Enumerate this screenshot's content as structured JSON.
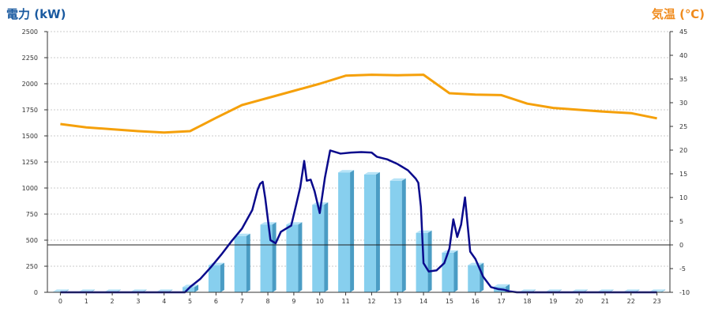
{
  "chart_data": {
    "type": "bar+line",
    "left_axis": {
      "label": "電力 (kW)",
      "color": "#1a5aa0",
      "ylim": [
        0,
        2500
      ],
      "ticks": [
        0,
        250,
        500,
        750,
        1000,
        1250,
        1500,
        1750,
        2000,
        2250,
        2500
      ]
    },
    "right_axis": {
      "label": "気温 (℃)",
      "color": "#f08c1e",
      "ylim": [
        -10,
        45
      ],
      "ticks": [
        -10,
        -5,
        0,
        5,
        10,
        15,
        20,
        25,
        30,
        35,
        40,
        45
      ]
    },
    "x_ticks": [
      "0",
      "1",
      "2",
      "3",
      "4",
      "5",
      "6",
      "7",
      "8",
      "9",
      "10",
      "11",
      "12",
      "13",
      "14",
      "15",
      "16",
      "17",
      "18",
      "19",
      "20",
      "21",
      "22",
      "23"
    ],
    "grid": true,
    "bars": {
      "axis": "left",
      "color": "#87cfee",
      "side_color": "#4a9cc4",
      "top_color": "#b6e3f7",
      "values": [
        5,
        5,
        5,
        5,
        5,
        50,
        260,
        540,
        650,
        650,
        840,
        1150,
        1130,
        1070,
        570,
        380,
        260,
        55,
        5,
        5,
        5,
        5,
        5,
        5
      ]
    },
    "temperature": {
      "axis": "right",
      "color": "#f5a00a",
      "x": [
        0,
        1,
        2,
        3,
        4,
        5,
        6,
        7,
        8,
        9,
        10,
        11,
        12,
        13,
        14,
        15,
        16,
        17,
        18,
        19,
        20,
        21,
        22,
        23
      ],
      "values": [
        25.5,
        24.8,
        24.4,
        24.0,
        23.7,
        24.0,
        26.8,
        29.5,
        31.0,
        32.5,
        34.0,
        35.7,
        35.9,
        35.8,
        35.9,
        32.0,
        31.7,
        31.6,
        29.8,
        28.9,
        28.5,
        28.1,
        27.8,
        26.7
      ]
    },
    "power_line": {
      "axis": "left",
      "color": "#0a0a8c",
      "x": [
        0,
        1,
        2,
        3,
        4,
        4.8,
        5.0,
        5.4,
        5.8,
        6.2,
        6.6,
        7.0,
        7.4,
        7.6,
        7.7,
        7.8,
        7.9,
        8.1,
        8.3,
        8.5,
        8.7,
        8.9,
        9.1,
        9.25,
        9.4,
        9.5,
        9.65,
        9.8,
        10.0,
        10.2,
        10.4,
        10.8,
        11.2,
        11.6,
        12.0,
        12.2,
        12.6,
        13.0,
        13.4,
        13.7,
        13.8,
        13.9,
        14.0,
        14.2,
        14.5,
        14.8,
        15.0,
        15.15,
        15.3,
        15.45,
        15.6,
        15.8,
        16.0,
        16.3,
        16.6,
        16.9,
        17.1,
        17.3,
        17.6,
        18,
        19,
        20,
        21,
        22,
        23
      ],
      "values": [
        0,
        0,
        0,
        0,
        0,
        0,
        50,
        130,
        240,
        360,
        490,
        610,
        790,
        980,
        1040,
        1060,
        900,
        500,
        470,
        580,
        610,
        640,
        850,
        1010,
        1260,
        1070,
        1080,
        970,
        760,
        1100,
        1360,
        1330,
        1340,
        1345,
        1340,
        1300,
        1275,
        1230,
        1170,
        1090,
        1050,
        820,
        280,
        200,
        210,
        280,
        420,
        700,
        530,
        650,
        910,
        390,
        320,
        150,
        50,
        30,
        25,
        10,
        0,
        0,
        0,
        0,
        0,
        0,
        0
      ]
    }
  }
}
